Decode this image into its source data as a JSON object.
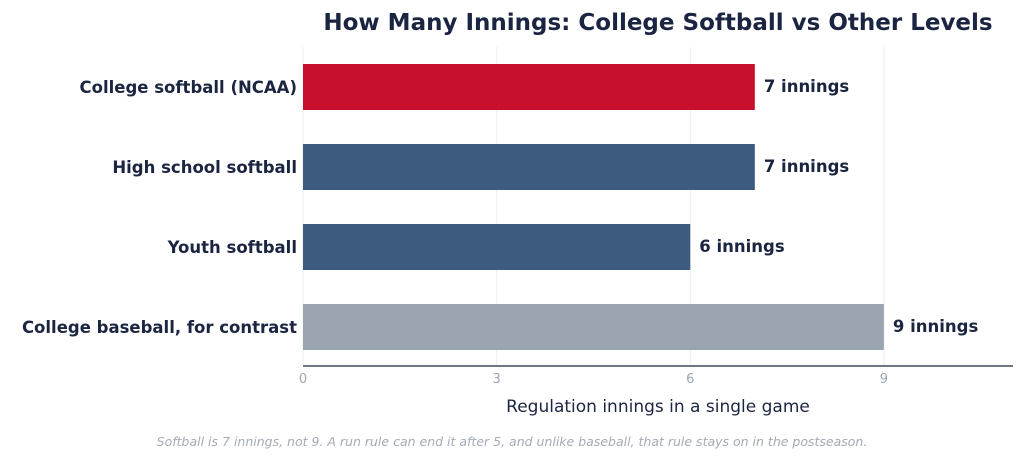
{
  "colors": {
    "highlight": "#c8102e",
    "primary": "#3d5a80",
    "contrast": "#9ba5b1",
    "text": "#1b2541",
    "muted": "#9aa5b1"
  },
  "footnote": "Softball is 7 innings, not 9. A run rule can end it after 5, and unlike baseball, that rule stays on in the postseason.",
  "chart_data": {
    "type": "bar",
    "orientation": "horizontal",
    "title": "How Many Innings: College Softball vs Other Levels",
    "xlabel": "Regulation innings in a single game",
    "ylabel": "",
    "categories": [
      "College softball (NCAA)",
      "High school softball",
      "Youth softball",
      "College baseball, for contrast"
    ],
    "values": [
      7,
      7,
      6,
      9
    ],
    "value_labels": [
      "7 innings",
      "7 innings",
      "6 innings",
      "9 innings"
    ],
    "bar_colors": [
      "#c8102e",
      "#3d5a80",
      "#3d5a80",
      "#9ba5b1"
    ],
    "xlim": [
      0,
      11
    ],
    "xticks": [
      0,
      3,
      6,
      9
    ],
    "xtick_labels": [
      "0",
      "3",
      "6",
      "9"
    ],
    "grid": true,
    "legend": "none"
  }
}
